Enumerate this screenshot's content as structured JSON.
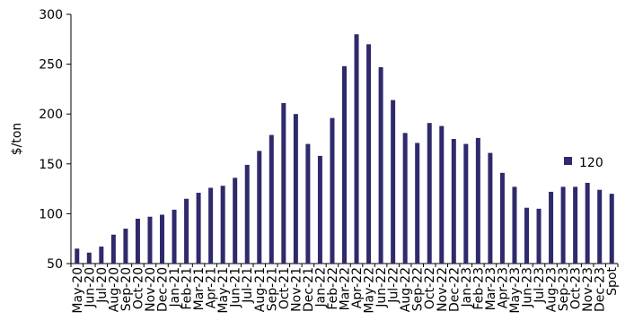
{
  "chart_data": {
    "type": "bar",
    "title": "",
    "xlabel": "",
    "ylabel": "$/ton",
    "ylim": [
      50,
      300
    ],
    "yticks": [
      50,
      100,
      150,
      200,
      250,
      300
    ],
    "grid": false,
    "legend_position": "right",
    "bar_color": "#2e2a6b",
    "categories": [
      "May-20",
      "Jun-20",
      "Jul-20",
      "Aug-20",
      "Sep-20",
      "Oct-20",
      "Nov-20",
      "Dec-20",
      "Jan-21",
      "Feb-21",
      "Mar-21",
      "Apr-21",
      "May-21",
      "Jun-21",
      "Jul-21",
      "Aug-21",
      "Sep-21",
      "Oct-21",
      "Nov-21",
      "Dec-21",
      "Jan-22",
      "Feb-22",
      "Mar-22",
      "Apr-22",
      "May-22",
      "Jun-22",
      "Jul-22",
      "Aug-22",
      "Sep-22",
      "Oct-22",
      "Nov-22",
      "Dec-22",
      "Jan-23",
      "Feb-23",
      "Mar-23",
      "Apr-23",
      "May-23",
      "Jun-23",
      "Jul-23",
      "Aug-23",
      "Sep-23",
      "Oct-23",
      "Nov-23",
      "Dec-23",
      "Spot"
    ],
    "series": [
      {
        "name": "120",
        "values": [
          65,
          61,
          67,
          79,
          85,
          95,
          97,
          99,
          104,
          115,
          121,
          126,
          128,
          136,
          149,
          163,
          179,
          211,
          200,
          170,
          158,
          196,
          248,
          280,
          270,
          247,
          214,
          181,
          171,
          191,
          188,
          175,
          170,
          176,
          161,
          141,
          127,
          106,
          105,
          122,
          127,
          127,
          131,
          124,
          120
        ]
      }
    ]
  }
}
